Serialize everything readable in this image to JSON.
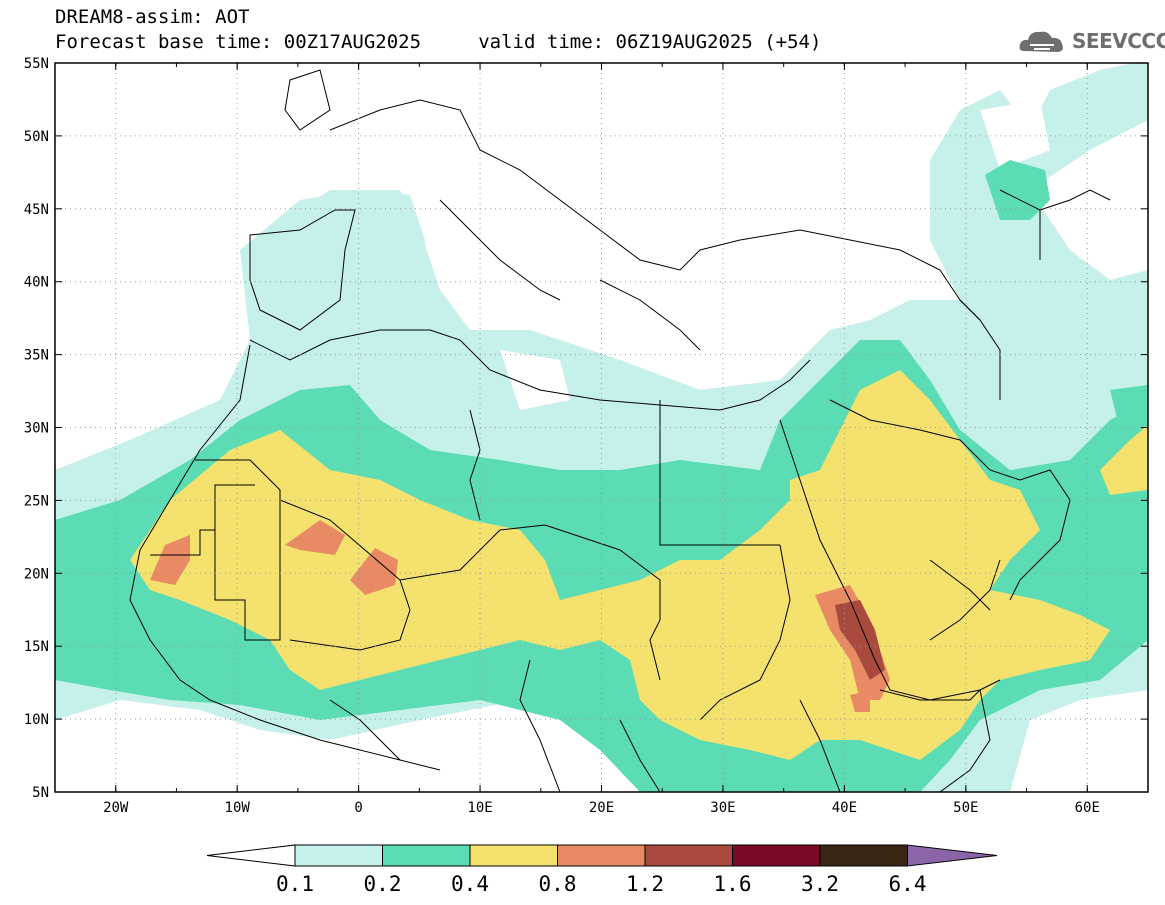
{
  "header": {
    "title_line1": "DREAM8-assim: AOT",
    "title_line2": "Forecast base time: 00Z17AUG2025     valid time: 06Z19AUG2025 (+54)",
    "logo_text": "SEEVCCC"
  },
  "map": {
    "variable": "AOT",
    "lat_range": [
      5,
      55
    ],
    "lon_range": [
      -25,
      65
    ],
    "lat_labels": [
      "55N",
      "50N",
      "45N",
      "40N",
      "35N",
      "30N",
      "25N",
      "20N",
      "15N",
      "10N",
      "5N"
    ],
    "lat_values": [
      55,
      50,
      45,
      40,
      35,
      30,
      25,
      20,
      15,
      10,
      5
    ],
    "lon_labels": [
      "20W",
      "10W",
      "0",
      "10E",
      "20E",
      "30E",
      "40E",
      "50E",
      "60E"
    ],
    "lon_values": [
      -20,
      -10,
      0,
      10,
      20,
      30,
      40,
      50,
      60
    ]
  },
  "colorbar": {
    "levels": [
      "0.1",
      "0.2",
      "0.4",
      "0.8",
      "1.2",
      "1.6",
      "3.2",
      "6.4"
    ],
    "colors": [
      "#ffffff",
      "#c6f0ea",
      "#5cdcb4",
      "#f5e26e",
      "#e88a64",
      "#a84a3e",
      "#7a0a28",
      "#3a2614",
      "#8c64a8"
    ]
  },
  "colors": {
    "ocean": "#ffffff",
    "border": "#000000"
  }
}
